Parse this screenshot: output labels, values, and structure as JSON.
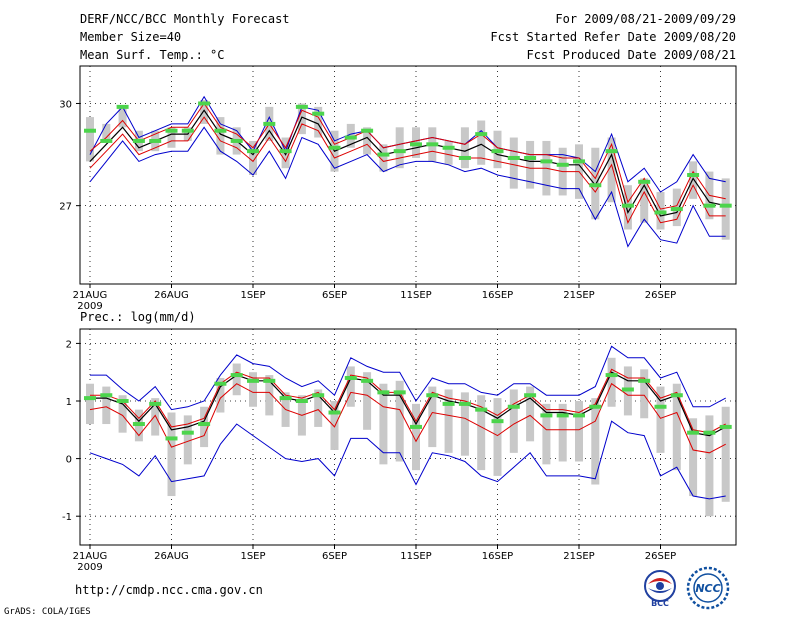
{
  "header": {
    "title": "DERF/NCC/BCC Monthly Forecast",
    "member_size": "Member Size=40",
    "variable": "Mean Surf. Temp.: °C",
    "period": "For 2009/08/21-2009/09/29",
    "started": "Fcst Started Refer Date 2009/08/20",
    "produced": "Fcst Produced Date 2009/08/21"
  },
  "footer": {
    "url": "http://cmdp.ncc.cma.gov.cn",
    "grads": "GrADS: COLA/IGES",
    "logo1_text": "BCC",
    "logo2_text": "NCC"
  },
  "colors": {
    "box": "#c8c8c8",
    "median": "#4cd44c",
    "spread": "#0000cc",
    "mean": "#000000",
    "pct": "#dd0000"
  },
  "chart_data": [
    {
      "type": "box",
      "title": "Mean Surf. Temp.: °C",
      "x_day_index": [
        0,
        1,
        2,
        3,
        4,
        5,
        6,
        7,
        8,
        9,
        10,
        11,
        12,
        13,
        14,
        15,
        16,
        17,
        18,
        19,
        20,
        21,
        22,
        23,
        24,
        25,
        26,
        27,
        28,
        29,
        30,
        31,
        32,
        33,
        34,
        35,
        36,
        37,
        38,
        39
      ],
      "x_tick_labels": [
        "21AUG",
        "26AUG",
        "1SEP",
        "6SEP",
        "11SEP",
        "16SEP",
        "21SEP",
        "26SEP"
      ],
      "x_tick_index": [
        0,
        5,
        10,
        15,
        20,
        25,
        30,
        35
      ],
      "x_year_label": "2009",
      "y_ticks": [
        27,
        30
      ],
      "ylim": [
        24.7,
        31.1
      ],
      "mean": [
        28.3,
        28.8,
        29.3,
        28.7,
        28.9,
        29.1,
        29.1,
        29.8,
        29.1,
        28.9,
        28.5,
        29.2,
        28.5,
        29.6,
        29.4,
        28.6,
        28.8,
        29.0,
        28.5,
        28.6,
        28.7,
        28.8,
        28.7,
        28.6,
        28.8,
        28.5,
        28.4,
        28.3,
        28.3,
        28.2,
        28.2,
        27.6,
        28.5,
        26.8,
        27.6,
        26.7,
        26.8,
        27.8,
        27.1,
        27.0
      ],
      "upper_pct": [
        28.6,
        29.0,
        29.5,
        28.9,
        29.1,
        29.3,
        29.3,
        30.0,
        29.3,
        29.1,
        28.7,
        29.4,
        28.7,
        29.8,
        29.6,
        28.8,
        29.0,
        29.2,
        28.7,
        28.8,
        28.9,
        29.0,
        28.9,
        28.8,
        29.1,
        28.7,
        28.6,
        28.5,
        28.5,
        28.4,
        28.4,
        27.8,
        28.8,
        27.1,
        27.8,
        26.9,
        27.0,
        28.0,
        27.3,
        27.2
      ],
      "lower_pct": [
        28.1,
        28.6,
        29.1,
        28.5,
        28.7,
        28.9,
        28.9,
        29.6,
        28.9,
        28.7,
        28.3,
        29.0,
        28.3,
        29.4,
        29.2,
        28.4,
        28.6,
        28.8,
        28.3,
        28.4,
        28.5,
        28.6,
        28.5,
        28.4,
        28.4,
        28.3,
        28.2,
        28.1,
        28.1,
        28.0,
        28.0,
        27.4,
        28.2,
        26.5,
        27.4,
        26.5,
        26.6,
        27.6,
        26.7,
        26.7
      ],
      "max": [
        28.5,
        29.4,
        29.9,
        29.0,
        29.2,
        29.4,
        29.4,
        30.2,
        29.4,
        29.2,
        28.6,
        29.6,
        28.6,
        29.9,
        29.8,
        28.9,
        29.1,
        29.2,
        28.7,
        28.8,
        28.9,
        29.0,
        28.9,
        28.8,
        29.2,
        28.7,
        28.6,
        28.5,
        28.5,
        28.5,
        28.4,
        28.0,
        29.1,
        27.7,
        28.1,
        27.4,
        27.7,
        28.5,
        27.8,
        27.7
      ],
      "min": [
        27.7,
        28.3,
        28.9,
        28.3,
        28.5,
        28.6,
        28.6,
        29.3,
        28.6,
        28.3,
        27.9,
        28.6,
        27.8,
        29.0,
        28.8,
        28.1,
        28.3,
        28.5,
        28.0,
        28.2,
        28.3,
        28.3,
        28.2,
        28.0,
        28.1,
        27.9,
        27.8,
        27.7,
        27.6,
        27.5,
        27.5,
        26.6,
        27.4,
        25.8,
        26.6,
        26.0,
        25.9,
        27.0,
        26.1,
        26.1
      ],
      "box_high": [
        29.6,
        29.4,
        29.9,
        29.2,
        29.2,
        29.3,
        29.3,
        30.1,
        29.6,
        29.3,
        28.9,
        29.9,
        29.0,
        30.0,
        29.9,
        29.2,
        29.4,
        29.3,
        28.8,
        29.3,
        29.3,
        29.3,
        28.9,
        29.3,
        29.5,
        29.2,
        29.0,
        28.9,
        28.9,
        28.7,
        28.8,
        28.7,
        29.0,
        27.6,
        27.8,
        27.4,
        27.5,
        28.3,
        28.0,
        27.8
      ],
      "box_low": [
        28.3,
        28.9,
        29.3,
        28.6,
        28.6,
        28.7,
        28.9,
        29.4,
        28.5,
        28.5,
        27.9,
        28.9,
        28.1,
        29.1,
        29.0,
        28.0,
        28.7,
        28.5,
        28.0,
        28.1,
        28.4,
        28.3,
        28.2,
        28.1,
        28.2,
        28.1,
        27.5,
        27.5,
        27.3,
        27.3,
        27.2,
        26.6,
        27.1,
        26.3,
        26.5,
        26.3,
        26.4,
        27.2,
        26.6,
        26.0
      ],
      "median": [
        29.2,
        28.9,
        29.9,
        28.9,
        28.9,
        29.2,
        29.2,
        30.0,
        29.2,
        28.9,
        28.6,
        29.4,
        28.6,
        29.9,
        29.7,
        28.7,
        29.0,
        29.2,
        28.5,
        28.6,
        28.8,
        28.8,
        28.7,
        28.4,
        29.1,
        28.6,
        28.4,
        28.4,
        28.3,
        28.2,
        28.3,
        27.6,
        28.6,
        27.0,
        27.7,
        26.8,
        26.9,
        27.9,
        27.0,
        27.0
      ]
    },
    {
      "type": "box",
      "title": "Prec.: log(mm/d)",
      "x_day_index": [
        0,
        1,
        2,
        3,
        4,
        5,
        6,
        7,
        8,
        9,
        10,
        11,
        12,
        13,
        14,
        15,
        16,
        17,
        18,
        19,
        20,
        21,
        22,
        23,
        24,
        25,
        26,
        27,
        28,
        29,
        30,
        31,
        32,
        33,
        34,
        35,
        36,
        37,
        38,
        39
      ],
      "x_tick_labels": [
        "21AUG",
        "26AUG",
        "1SEP",
        "6SEP",
        "11SEP",
        "16SEP",
        "21SEP",
        "26SEP"
      ],
      "x_tick_index": [
        0,
        5,
        10,
        15,
        20,
        25,
        30,
        35
      ],
      "x_year_label": "2009",
      "y_ticks": [
        -1,
        0,
        1,
        2
      ],
      "ylim": [
        -1.5,
        2.25
      ],
      "mean": [
        1.05,
        1.05,
        0.95,
        0.65,
        0.95,
        0.5,
        0.55,
        0.65,
        1.25,
        1.45,
        1.35,
        1.35,
        1.05,
        1.0,
        1.1,
        0.8,
        1.4,
        1.35,
        1.1,
        1.1,
        0.6,
        1.1,
        1.0,
        0.95,
        0.85,
        0.7,
        0.9,
        1.05,
        0.8,
        0.8,
        0.75,
        0.9,
        1.5,
        1.35,
        1.35,
        1.0,
        1.1,
        0.45,
        0.4,
        0.55
      ],
      "upper_pct": [
        1.1,
        1.1,
        1.0,
        0.7,
        1.0,
        0.55,
        0.6,
        0.7,
        1.3,
        1.5,
        1.4,
        1.4,
        1.1,
        1.05,
        1.15,
        0.85,
        1.45,
        1.4,
        1.15,
        1.15,
        0.65,
        1.15,
        1.05,
        1.0,
        0.9,
        0.75,
        0.95,
        1.1,
        0.85,
        0.85,
        0.8,
        0.95,
        1.55,
        1.4,
        1.4,
        1.05,
        1.15,
        0.5,
        0.45,
        0.6
      ],
      "lower_pct": [
        0.85,
        0.9,
        0.75,
        0.4,
        0.75,
        0.2,
        0.3,
        0.4,
        1.05,
        1.3,
        1.15,
        1.15,
        0.85,
        0.75,
        0.85,
        0.55,
        1.15,
        1.1,
        0.9,
        0.85,
        0.3,
        0.8,
        0.75,
        0.7,
        0.55,
        0.4,
        0.6,
        0.75,
        0.5,
        0.5,
        0.5,
        0.65,
        1.3,
        1.1,
        1.1,
        0.7,
        0.8,
        0.15,
        0.1,
        0.25
      ],
      "max": [
        1.45,
        1.45,
        1.2,
        1.0,
        1.25,
        0.85,
        0.9,
        1.0,
        1.45,
        1.8,
        1.65,
        1.6,
        1.4,
        1.25,
        1.35,
        1.1,
        1.75,
        1.6,
        1.5,
        1.5,
        1.0,
        1.4,
        1.3,
        1.3,
        1.15,
        1.1,
        1.3,
        1.3,
        1.1,
        1.1,
        1.1,
        1.25,
        1.95,
        1.75,
        1.75,
        1.4,
        1.5,
        0.9,
        0.9,
        1.05
      ],
      "min": [
        0.1,
        0.0,
        -0.1,
        -0.3,
        0.05,
        -0.4,
        -0.35,
        -0.3,
        0.25,
        0.6,
        0.4,
        0.2,
        0.0,
        -0.05,
        0.0,
        -0.3,
        0.35,
        0.35,
        0.1,
        0.1,
        -0.45,
        0.1,
        0.05,
        -0.05,
        -0.3,
        -0.4,
        -0.15,
        0.1,
        -0.3,
        -0.3,
        -0.3,
        -0.35,
        0.65,
        0.45,
        0.4,
        -0.3,
        -0.15,
        -0.65,
        -0.7,
        -0.65
      ],
      "box_high": [
        1.3,
        1.25,
        1.1,
        0.85,
        1.05,
        0.8,
        0.75,
        0.9,
        1.4,
        1.65,
        1.5,
        1.45,
        1.15,
        1.1,
        1.2,
        1.0,
        1.6,
        1.5,
        1.3,
        1.35,
        0.95,
        1.25,
        1.2,
        1.15,
        1.1,
        1.05,
        1.2,
        1.25,
        0.95,
        0.95,
        1.0,
        1.05,
        1.75,
        1.6,
        1.55,
        1.25,
        1.3,
        0.7,
        0.75,
        0.9
      ],
      "box_low": [
        0.6,
        0.6,
        0.45,
        0.3,
        0.4,
        -0.65,
        -0.1,
        0.2,
        0.8,
        1.1,
        0.9,
        0.75,
        0.55,
        0.4,
        0.55,
        0.15,
        0.9,
        0.5,
        -0.1,
        -0.05,
        -0.2,
        0.2,
        0.1,
        0.05,
        -0.2,
        -0.3,
        0.1,
        0.3,
        -0.1,
        -0.05,
        -0.05,
        -0.45,
        0.9,
        0.75,
        0.7,
        0.1,
        -0.2,
        -0.65,
        -1.0,
        -0.75
      ],
      "median": [
        1.05,
        1.1,
        1.0,
        0.6,
        0.95,
        0.35,
        0.45,
        0.6,
        1.3,
        1.45,
        1.35,
        1.35,
        1.05,
        1.0,
        1.1,
        0.8,
        1.4,
        1.35,
        1.15,
        1.15,
        0.55,
        1.1,
        0.95,
        0.95,
        0.85,
        0.65,
        0.9,
        1.1,
        0.75,
        0.75,
        0.75,
        0.9,
        1.45,
        1.2,
        1.35,
        0.9,
        1.1,
        0.45,
        0.45,
        0.55
      ]
    }
  ]
}
